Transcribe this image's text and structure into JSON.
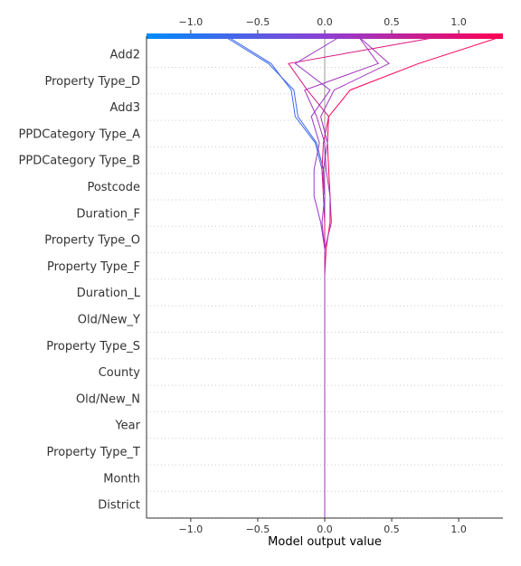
{
  "chart_data": {
    "type": "decision",
    "xlabel": "Model output value",
    "xlim": [
      -1.33,
      1.33
    ],
    "base_value": 0.0,
    "xticks": [
      -1.0,
      -0.5,
      0.0,
      0.5,
      1.0
    ],
    "xtick_labels": [
      "−1.0",
      "−0.5",
      "0.0",
      "0.5",
      "1.0"
    ],
    "colorbar": {
      "low_color": "#008bfb",
      "mid_color": "#8e3fd4",
      "high_color": "#ff0052"
    },
    "features": [
      "Add2",
      "Property Type_D",
      "Add3",
      "PPDCategory Type_A",
      "PPDCategory Type_B",
      "Postcode",
      "Duration_F",
      "Property Type_O",
      "Property Type_F",
      "Duration_L",
      "Old/New_Y",
      "Property Type_S",
      "County",
      "Old/New_N",
      "Year",
      "Property Type_T",
      "Month",
      "District"
    ],
    "grid": "horizontal-dotted",
    "series": [
      {
        "values": [
          -0.75,
          -0.42,
          -0.23,
          -0.2,
          -0.06,
          -0.01,
          0.0,
          0.0,
          0.0,
          0.0,
          0.0,
          0.0,
          0.0,
          0.0,
          0.0,
          0.0,
          0.0,
          0.0,
          0.0
        ]
      },
      {
        "values": [
          -0.73,
          -0.4,
          -0.25,
          -0.22,
          -0.07,
          -0.02,
          0.0,
          0.0,
          0.0,
          0.0,
          0.0,
          0.0,
          0.0,
          0.0,
          0.0,
          0.0,
          0.0,
          0.0,
          0.0
        ]
      },
      {
        "values": [
          1.33,
          0.7,
          0.19,
          0.03,
          0.02,
          0.03,
          0.04,
          0.04,
          0.01,
          0.0,
          0.0,
          0.0,
          0.0,
          0.0,
          0.0,
          0.0,
          0.0,
          0.0,
          0.0
        ]
      },
      {
        "values": [
          0.88,
          -0.27,
          -0.13,
          0.03,
          -0.01,
          -0.02,
          -0.01,
          0.0,
          0.0,
          0.0,
          0.0,
          0.0,
          0.0,
          0.0,
          0.0,
          0.0,
          0.0,
          0.0,
          0.0
        ]
      },
      {
        "values": [
          0.25,
          0.48,
          0.07,
          -0.03,
          0.02,
          -0.01,
          0.0,
          -0.02,
          0.0,
          0.0,
          0.0,
          0.0,
          0.0,
          0.0,
          0.0,
          0.0,
          0.0,
          0.0,
          0.0
        ]
      },
      {
        "values": [
          0.12,
          -0.22,
          0.04,
          -0.1,
          -0.04,
          -0.08,
          -0.08,
          -0.03,
          0.0,
          0.0,
          0.0,
          0.0,
          0.0,
          0.0,
          0.0,
          0.0,
          0.0,
          0.0,
          0.0
        ]
      },
      {
        "values": [
          0.25,
          0.4,
          -0.15,
          -0.06,
          0.0,
          0.01,
          0.04,
          0.05,
          0.0,
          0.0,
          0.0,
          0.0,
          0.0,
          0.0,
          0.0,
          0.0,
          0.0,
          0.0,
          0.0
        ]
      }
    ]
  }
}
